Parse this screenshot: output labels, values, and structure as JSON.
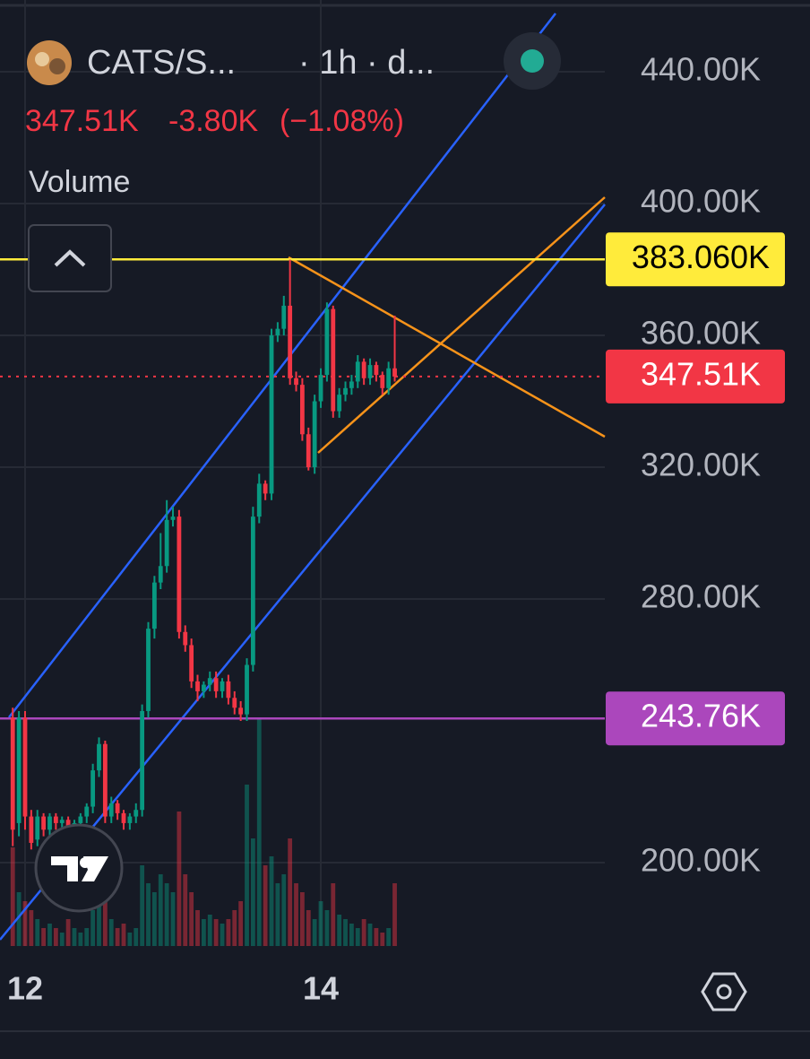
{
  "chart_data": {
    "type": "candlestick",
    "symbol": "CATS/S...",
    "interval": "· 1h · d...",
    "change": "-3.80K",
    "change_percent": "(−1.08%)",
    "indicator": "Volume",
    "last_price": {
      "value": 347510,
      "label": "347.51K"
    },
    "levels": [
      {
        "value": 383060,
        "label": "383.060K",
        "color": "#ffeb3b"
      },
      {
        "value": 243760,
        "label": "243.76K",
        "color": "#ab47bc"
      }
    ],
    "up_color": "#089981",
    "down_color": "#f23645",
    "grid": true,
    "xlim": [
      -4.07,
      94.1
    ],
    "xticks": [
      {
        "value": 0,
        "label": "12"
      },
      {
        "value": 48,
        "label": "14"
      }
    ],
    "ylim": [
      174700,
      461770
    ],
    "yticks": [
      {
        "value": 200000,
        "label": "200.00K"
      },
      {
        "value": 280000,
        "label": "280.00K"
      },
      {
        "value": 320000,
        "label": "320.00K"
      },
      {
        "value": 360000,
        "label": "360.00K"
      },
      {
        "value": 400000,
        "label": "400.00K"
      },
      {
        "value": 440000,
        "label": "440.00K"
      }
    ],
    "x": [
      -2,
      -1,
      0,
      1,
      2,
      3,
      4,
      5,
      6,
      7,
      8,
      9,
      10,
      11,
      12,
      13,
      14,
      15,
      16,
      17,
      18,
      19,
      20,
      21,
      22,
      23,
      24,
      25,
      26,
      27,
      28,
      29,
      30,
      31,
      32,
      33,
      34,
      35,
      36,
      37,
      38,
      39,
      40,
      41,
      42,
      43,
      44,
      45,
      46,
      47,
      48,
      49,
      50,
      51,
      52,
      53,
      54,
      55,
      56,
      57,
      58,
      59,
      60
    ],
    "open": [
      244000,
      212000,
      244000,
      214000,
      207000,
      214000,
      210000,
      214000,
      212000,
      213000,
      211000,
      212000,
      214000,
      217000,
      228000,
      236000,
      214000,
      218000,
      215000,
      212000,
      214000,
      216000,
      246000,
      271000,
      285000,
      290000,
      304000,
      305000,
      270000,
      266000,
      255000,
      252000,
      254000,
      256000,
      252000,
      255000,
      250000,
      247000,
      245000,
      260000,
      305000,
      315000,
      312000,
      360000,
      362000,
      369000,
      347000,
      345000,
      330000,
      320000,
      340000,
      348000,
      368000,
      337000,
      342000,
      344000,
      346000,
      352000,
      347000,
      351000,
      348000,
      344000,
      350000
    ],
    "high": [
      247000,
      246000,
      246000,
      216000,
      216000,
      215000,
      215000,
      215000,
      214000,
      214000,
      213000,
      215000,
      218000,
      230000,
      238000,
      237000,
      220000,
      219000,
      216000,
      215000,
      218000,
      248000,
      273000,
      287000,
      300000,
      310000,
      308000,
      307000,
      272000,
      268000,
      257000,
      255000,
      258000,
      258000,
      256000,
      257000,
      252000,
      249000,
      262000,
      308000,
      318000,
      316000,
      362000,
      364000,
      372000,
      383000,
      349000,
      347000,
      332000,
      342000,
      350000,
      370000,
      369000,
      344000,
      346000,
      348000,
      354000,
      353000,
      353000,
      352000,
      349000,
      352000,
      366000
    ],
    "low": [
      205000,
      208000,
      210000,
      204000,
      205000,
      208000,
      208000,
      210000,
      210000,
      209000,
      209000,
      210000,
      212000,
      215000,
      226000,
      212000,
      212000,
      213000,
      210000,
      210000,
      212000,
      214000,
      244000,
      268000,
      283000,
      288000,
      302000,
      268000,
      264000,
      253000,
      249000,
      250000,
      252000,
      250000,
      250000,
      248000,
      245000,
      243000,
      243000,
      258000,
      303000,
      310000,
      310000,
      358000,
      360000,
      345000,
      343000,
      328000,
      319000,
      318000,
      338000,
      346000,
      335000,
      335000,
      340000,
      342000,
      344000,
      345000,
      345000,
      346000,
      342000,
      342000,
      346000
    ],
    "close": [
      210000,
      244000,
      214000,
      206000,
      214000,
      210000,
      214000,
      212000,
      213000,
      211000,
      212000,
      214000,
      217000,
      228000,
      236000,
      214000,
      218000,
      215000,
      212000,
      214000,
      216000,
      246000,
      271000,
      285000,
      290000,
      304000,
      305000,
      270000,
      266000,
      255000,
      252000,
      254000,
      256000,
      252000,
      255000,
      250000,
      247000,
      245000,
      260000,
      305000,
      315000,
      312000,
      360000,
      362000,
      369000,
      347000,
      345000,
      330000,
      320000,
      340000,
      348000,
      368000,
      337000,
      342000,
      344000,
      346000,
      352000,
      347000,
      351000,
      348000,
      344000,
      350000,
      347510
    ],
    "volume": [
      110,
      60,
      50,
      40,
      30,
      20,
      25,
      20,
      15,
      30,
      20,
      15,
      20,
      40,
      50,
      60,
      30,
      20,
      25,
      15,
      20,
      90,
      70,
      60,
      80,
      70,
      60,
      150,
      80,
      60,
      40,
      30,
      35,
      30,
      25,
      30,
      40,
      50,
      180,
      120,
      255,
      90,
      100,
      70,
      80,
      120,
      70,
      60,
      40,
      30,
      50,
      40,
      70,
      35,
      30,
      25,
      20,
      30,
      25,
      20,
      15,
      20,
      70
    ]
  }
}
